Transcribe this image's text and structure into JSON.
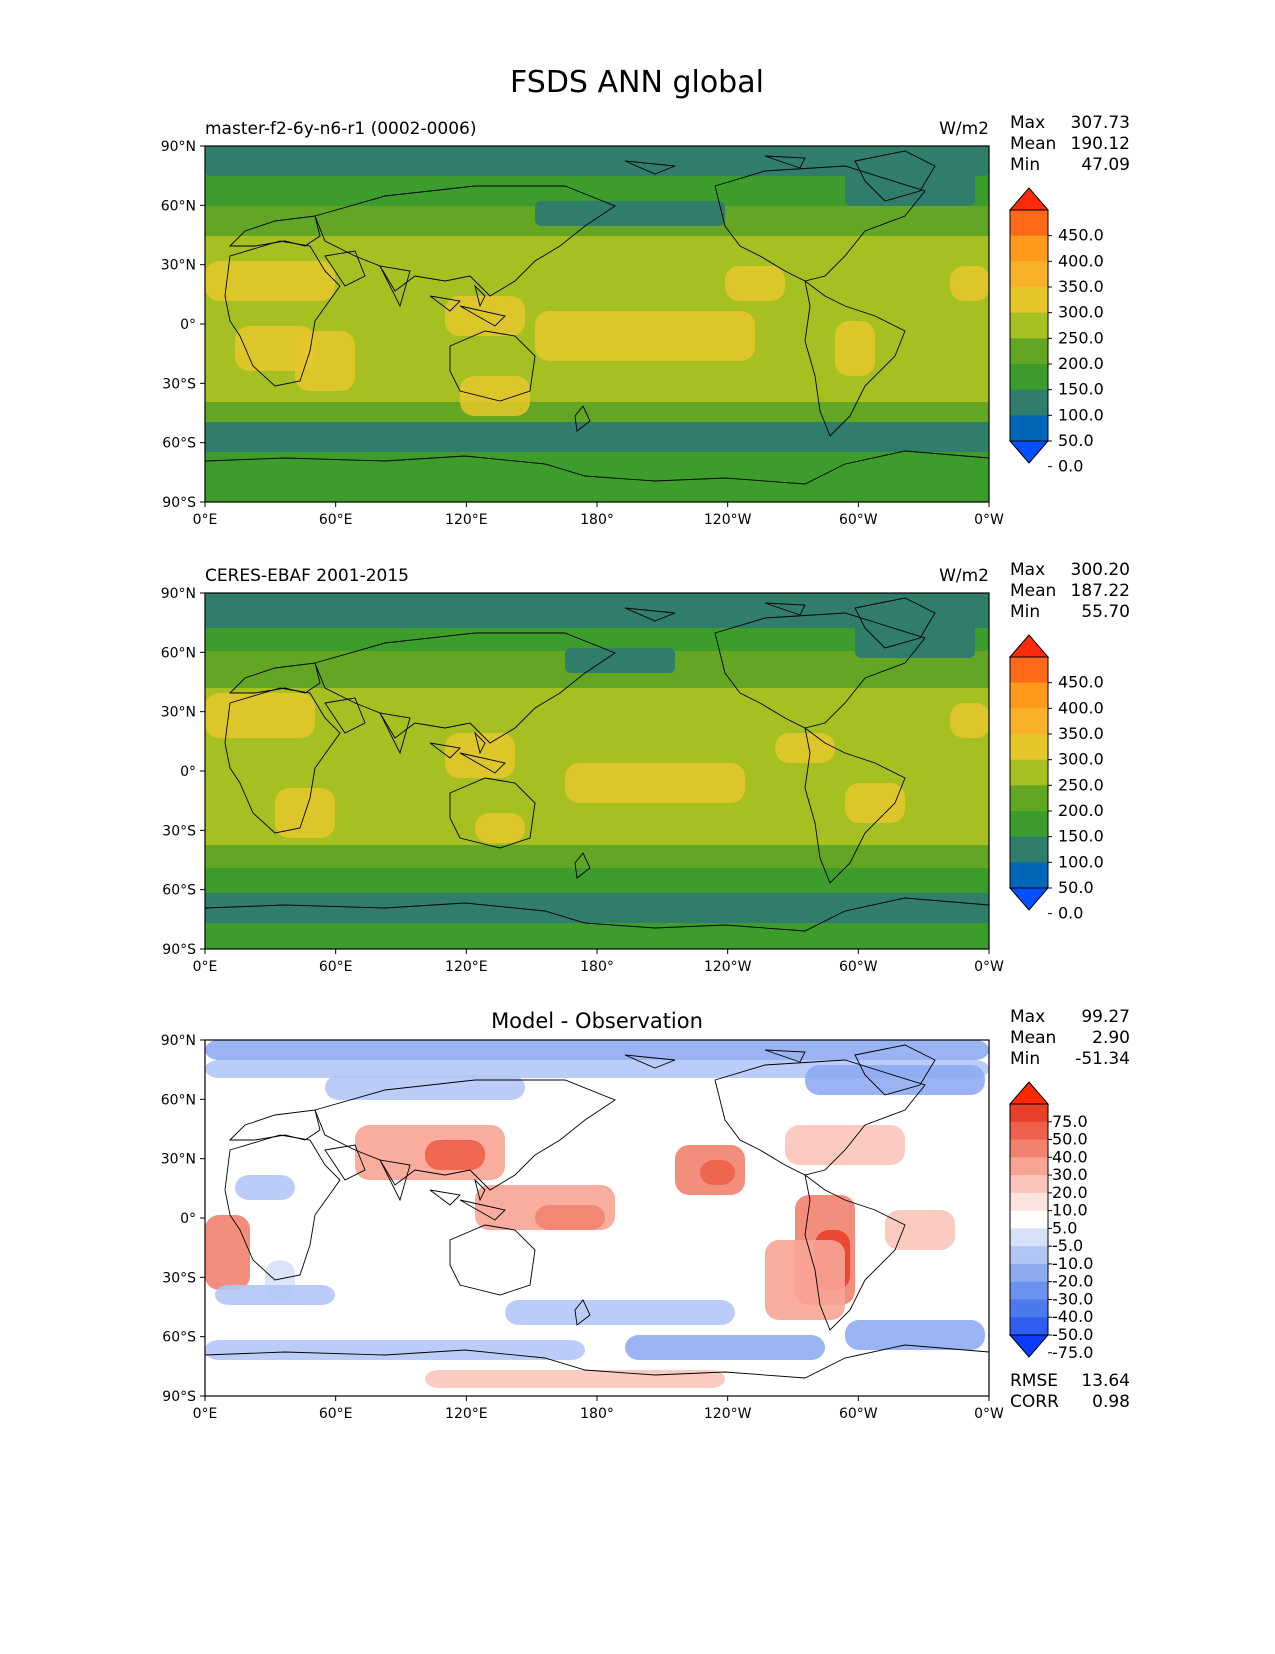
{
  "title": "FSDS ANN global",
  "axes": {
    "lat_ticks": [
      "90°N",
      "60°N",
      "30°N",
      "0°",
      "30°S",
      "60°S",
      "90°S"
    ],
    "lon_ticks": [
      "0°E",
      "60°E",
      "120°E",
      "180°",
      "120°W",
      "60°W",
      "0°W"
    ]
  },
  "colors": {
    "field_bins": [
      "#0050ff",
      "#0067b8",
      "#2f7d6a",
      "#3d9d2c",
      "#62a624",
      "#a6bf21",
      "#e6c72a",
      "#f7b22a",
      "#ff9a1a",
      "#ff6a1a",
      "#ff2a0a"
    ],
    "diff_bins": [
      "#0a3cff",
      "#2f5df0",
      "#4c79ec",
      "#6b92ef",
      "#8eabf2",
      "#b2c6f6",
      "#d7e1fa",
      "#ffffff",
      "#fde3de",
      "#fbc5bb",
      "#f7a495",
      "#f2826f",
      "#ee6049",
      "#e8412a",
      "#ff2a00"
    ],
    "coastline": "#000000"
  },
  "panels": [
    {
      "id": "model",
      "left_label": "master-f2-6y-n6-r1 (0002-0006)",
      "center_label": "",
      "units": "W/m2",
      "stats": [
        {
          "label": "Max",
          "value": "307.73"
        },
        {
          "label": "Mean",
          "value": "190.12"
        },
        {
          "label": "Min",
          "value": "47.09"
        }
      ],
      "colorbar_labels": [
        "450.0",
        "400.0",
        "350.0",
        "300.0",
        "250.0",
        "200.0",
        "150.0",
        "100.0",
        "50.0",
        "0.0"
      ],
      "footer_stats": []
    },
    {
      "id": "obs",
      "left_label": "CERES-EBAF 2001-2015",
      "center_label": "",
      "units": "W/m2",
      "stats": [
        {
          "label": "Max",
          "value": "300.20"
        },
        {
          "label": "Mean",
          "value": "187.22"
        },
        {
          "label": "Min",
          "value": "55.70"
        }
      ],
      "colorbar_labels": [
        "450.0",
        "400.0",
        "350.0",
        "300.0",
        "250.0",
        "200.0",
        "150.0",
        "100.0",
        "50.0",
        "0.0"
      ],
      "footer_stats": []
    },
    {
      "id": "diff",
      "left_label": "",
      "center_label": "Model - Observation",
      "units": "",
      "stats": [
        {
          "label": "Max",
          "value": "99.27"
        },
        {
          "label": "Mean",
          "value": "2.90"
        },
        {
          "label": "Min",
          "value": "-51.34"
        }
      ],
      "colorbar_labels": [
        "75.0",
        "50.0",
        "40.0",
        "30.0",
        "20.0",
        "10.0",
        "5.0",
        "-5.0",
        "-10.0",
        "-20.0",
        "-30.0",
        "-40.0",
        "-50.0",
        "-75.0"
      ],
      "footer_stats": [
        {
          "label": "RMSE",
          "value": "13.64"
        },
        {
          "label": "CORR",
          "value": "0.98"
        }
      ]
    }
  ]
}
